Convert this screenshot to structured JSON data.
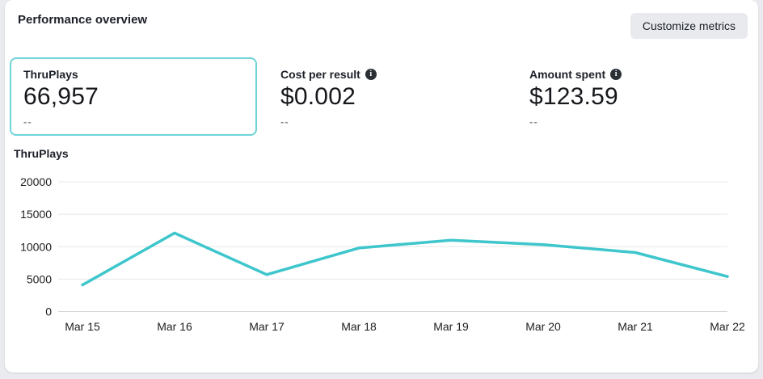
{
  "header": {
    "title": "Performance overview",
    "customize_button": "Customize metrics"
  },
  "metrics": [
    {
      "label": "ThruPlays",
      "value": "66,957",
      "sub": "--",
      "selected": true,
      "has_info_icon": false
    },
    {
      "label": "Cost per result",
      "value": "$0.002",
      "sub": "--",
      "selected": false,
      "has_info_icon": true
    },
    {
      "label": "Amount spent",
      "value": "$123.59",
      "sub": "--",
      "selected": false,
      "has_info_icon": true
    }
  ],
  "chart_section_title": "ThruPlays",
  "chart_data": {
    "type": "line",
    "title": "ThruPlays",
    "categories": [
      "Mar 15",
      "Mar 16",
      "Mar 17",
      "Mar 18",
      "Mar 19",
      "Mar 20",
      "Mar 21",
      "Mar 22"
    ],
    "values": [
      4100,
      12100,
      5700,
      9800,
      11000,
      10300,
      9100,
      5400
    ],
    "yticks": [
      0,
      5000,
      10000,
      15000,
      20000
    ],
    "ylim": [
      0,
      20000
    ],
    "xlabel": "",
    "ylabel": "",
    "grid": true,
    "legend": false,
    "line_color": "#3ec6cc"
  },
  "colors": {
    "accent_teal": "#3ec6cc",
    "selected_card_border": "#6fd3d9",
    "gridline": "#e7e8ea",
    "axis_line": "#d4d6da",
    "button_bg": "#e8eaed"
  },
  "icons": {
    "info": "i"
  }
}
